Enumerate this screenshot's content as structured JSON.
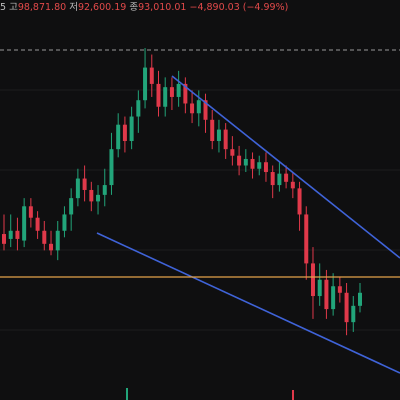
{
  "ohlc_bar": {
    "items": [
      {
        "label": "5 고",
        "value": "98,871.80"
      },
      {
        "label": "저",
        "value": "92,600.19"
      },
      {
        "label": "종",
        "value": "93,010.01"
      },
      {
        "label": "",
        "value": "−4,890.03 (−4.99%)"
      }
    ]
  },
  "colors": {
    "background": "#0f0f10",
    "up_candle": "#22a57a",
    "down_candle": "#e0394a",
    "trendline": "#3f63d8",
    "price_line": "#e3a24a",
    "dashed_line": "#9a9a9a",
    "grid": "#1c1c1e"
  },
  "chart_data": {
    "type": "candlestick",
    "note_ranges": "prices in chart units; top dashed line marks period high",
    "candles": [
      [
        0,
        148,
        142,
        160,
        138,
        "down"
      ],
      [
        1,
        145,
        150,
        160,
        140,
        "up"
      ],
      [
        2,
        150,
        145,
        158,
        138,
        "down"
      ],
      [
        3,
        144,
        165,
        170,
        140,
        "up"
      ],
      [
        4,
        165,
        158,
        170,
        152,
        "down"
      ],
      [
        5,
        158,
        150,
        162,
        145,
        "down"
      ],
      [
        6,
        150,
        142,
        156,
        138,
        "down"
      ],
      [
        7,
        142,
        138,
        150,
        135,
        "down"
      ],
      [
        8,
        138,
        150,
        156,
        132,
        "up"
      ],
      [
        9,
        150,
        160,
        165,
        146,
        "up"
      ],
      [
        10,
        160,
        170,
        176,
        150,
        "up"
      ],
      [
        11,
        170,
        182,
        188,
        165,
        "up"
      ],
      [
        12,
        182,
        175,
        190,
        168,
        "down"
      ],
      [
        13,
        175,
        168,
        180,
        162,
        "down"
      ],
      [
        14,
        168,
        172,
        178,
        160,
        "up"
      ],
      [
        15,
        172,
        178,
        188,
        165,
        "up"
      ],
      [
        16,
        178,
        200,
        210,
        172,
        "up"
      ],
      [
        17,
        200,
        215,
        222,
        195,
        "up"
      ],
      [
        18,
        215,
        205,
        220,
        198,
        "down"
      ],
      [
        19,
        205,
        220,
        226,
        200,
        "up"
      ],
      [
        20,
        220,
        230,
        236,
        210,
        "up"
      ],
      [
        21,
        230,
        250,
        262,
        225,
        "up"
      ],
      [
        22,
        250,
        240,
        258,
        232,
        "down"
      ],
      [
        23,
        240,
        226,
        248,
        220,
        "down"
      ],
      [
        24,
        226,
        238,
        244,
        220,
        "up"
      ],
      [
        25,
        238,
        232,
        244,
        224,
        "down"
      ],
      [
        26,
        232,
        240,
        248,
        226,
        "up"
      ],
      [
        27,
        240,
        228,
        244,
        222,
        "down"
      ],
      [
        28,
        228,
        222,
        236,
        216,
        "down"
      ],
      [
        29,
        222,
        230,
        236,
        214,
        "up"
      ],
      [
        30,
        230,
        218,
        234,
        210,
        "down"
      ],
      [
        31,
        218,
        205,
        224,
        200,
        "down"
      ],
      [
        32,
        205,
        212,
        218,
        198,
        "up"
      ],
      [
        33,
        212,
        200,
        216,
        194,
        "down"
      ],
      [
        34,
        200,
        196,
        208,
        190,
        "down"
      ],
      [
        35,
        196,
        190,
        202,
        184,
        "down"
      ],
      [
        36,
        190,
        194,
        200,
        186,
        "up"
      ],
      [
        37,
        194,
        188,
        198,
        182,
        "down"
      ],
      [
        38,
        188,
        192,
        196,
        184,
        "up"
      ],
      [
        39,
        192,
        186,
        198,
        180,
        "down"
      ],
      [
        40,
        186,
        178,
        190,
        170,
        "down"
      ],
      [
        41,
        178,
        185,
        192,
        174,
        "up"
      ],
      [
        42,
        185,
        180,
        190,
        176,
        "down"
      ],
      [
        43,
        180,
        176,
        186,
        170,
        "down"
      ],
      [
        44,
        176,
        160,
        180,
        150,
        "down"
      ],
      [
        45,
        160,
        130,
        165,
        120,
        "down"
      ],
      [
        46,
        130,
        110,
        140,
        96,
        "down"
      ],
      [
        47,
        110,
        120,
        130,
        104,
        "up"
      ],
      [
        48,
        120,
        102,
        126,
        96,
        "down"
      ],
      [
        49,
        102,
        116,
        124,
        98,
        "up"
      ],
      [
        50,
        116,
        112,
        122,
        106,
        "down"
      ],
      [
        51,
        112,
        94,
        118,
        86,
        "down"
      ],
      [
        52,
        94,
        104,
        110,
        88,
        "up"
      ],
      [
        53,
        104,
        112,
        118,
        100,
        "up"
      ]
    ]
  }
}
